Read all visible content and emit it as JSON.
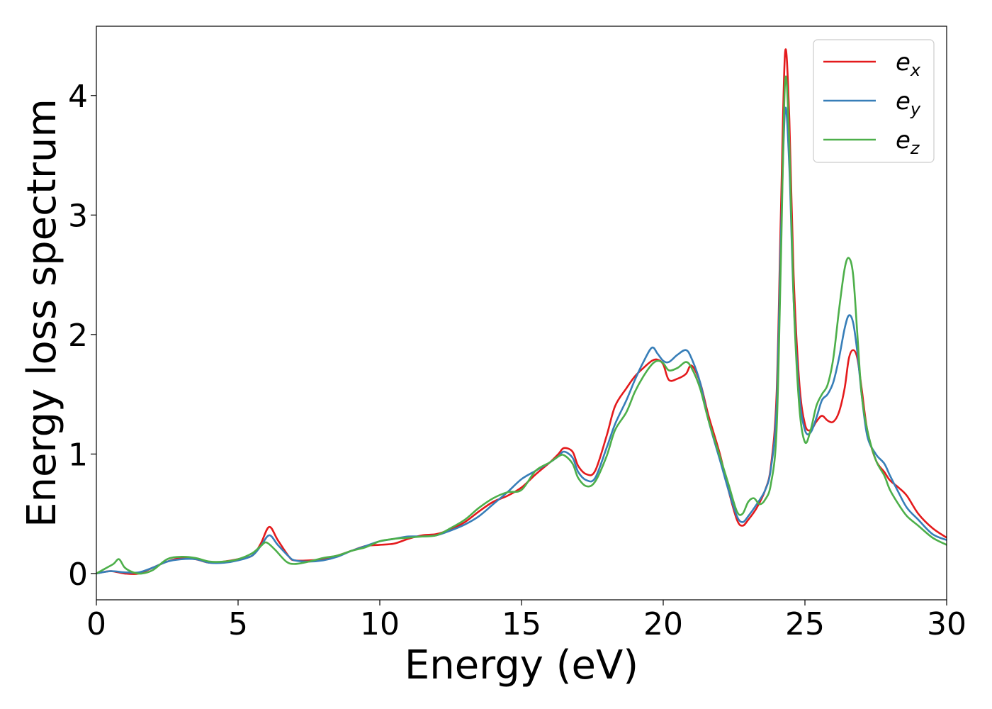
{
  "chart_data": {
    "type": "line",
    "title": "",
    "xlabel": "Energy (eV)",
    "ylabel": "Energy loss spectrum",
    "xlim": [
      0,
      30
    ],
    "ylim": [
      -0.22,
      4.58
    ],
    "xticks": [
      0,
      5,
      10,
      15,
      20,
      25,
      30
    ],
    "yticks": [
      0,
      1,
      2,
      3,
      4
    ],
    "grid": false,
    "legend_position": "top-right",
    "series": [
      {
        "name_base": "e",
        "name_sub": "x",
        "color": "#e41a1c",
        "x": [
          0,
          0.5,
          1,
          1.5,
          2,
          2.5,
          3,
          3.5,
          4,
          4.5,
          5,
          5.5,
          5.8,
          6.1,
          6.4,
          6.8,
          7,
          7.5,
          8,
          8.5,
          9,
          9.5,
          10,
          10.5,
          11,
          11.5,
          12,
          12.5,
          13,
          13.5,
          14,
          14.5,
          15,
          15.5,
          16,
          16.3,
          16.5,
          16.8,
          17,
          17.3,
          17.6,
          18,
          18.3,
          18.7,
          19,
          19.3,
          19.6,
          19.8,
          20,
          20.2,
          20.5,
          20.8,
          21,
          21.3,
          21.6,
          22,
          22.3,
          22.6,
          22.8,
          23,
          23.3,
          23.6,
          23.8,
          24,
          24.15,
          24.3,
          24.45,
          24.6,
          24.8,
          25,
          25.2,
          25.4,
          25.6,
          25.8,
          26,
          26.2,
          26.4,
          26.55,
          26.7,
          26.85,
          27,
          27.2,
          27.5,
          27.8,
          28,
          28.3,
          28.6,
          29,
          29.5,
          30
        ],
        "y": [
          0,
          0.02,
          0,
          0,
          0.05,
          0.1,
          0.13,
          0.12,
          0.09,
          0.1,
          0.12,
          0.15,
          0.25,
          0.39,
          0.28,
          0.14,
          0.11,
          0.11,
          0.12,
          0.15,
          0.19,
          0.23,
          0.24,
          0.25,
          0.29,
          0.32,
          0.33,
          0.37,
          0.43,
          0.52,
          0.6,
          0.65,
          0.72,
          0.83,
          0.93,
          1.0,
          1.05,
          1.02,
          0.9,
          0.83,
          0.86,
          1.15,
          1.4,
          1.55,
          1.65,
          1.72,
          1.78,
          1.79,
          1.75,
          1.62,
          1.63,
          1.67,
          1.74,
          1.6,
          1.32,
          1.0,
          0.7,
          0.45,
          0.4,
          0.45,
          0.55,
          0.7,
          0.9,
          1.5,
          3.0,
          4.36,
          3.8,
          2.5,
          1.6,
          1.25,
          1.2,
          1.27,
          1.32,
          1.28,
          1.27,
          1.35,
          1.55,
          1.8,
          1.87,
          1.8,
          1.55,
          1.2,
          0.95,
          0.85,
          0.78,
          0.72,
          0.65,
          0.5,
          0.38,
          0.3
        ]
      },
      {
        "name_base": "e",
        "name_sub": "y",
        "color": "#377eb8",
        "x": [
          0,
          0.5,
          1,
          1.5,
          2,
          2.5,
          3,
          3.5,
          4,
          4.5,
          5,
          5.5,
          5.8,
          6.1,
          6.4,
          6.8,
          7,
          7.5,
          8,
          8.5,
          9,
          9.5,
          10,
          10.5,
          11,
          11.5,
          12,
          12.5,
          13,
          13.5,
          14,
          14.5,
          15,
          15.5,
          16,
          16.3,
          16.5,
          16.8,
          17,
          17.3,
          17.6,
          18,
          18.3,
          18.7,
          19,
          19.3,
          19.6,
          19.8,
          20,
          20.2,
          20.5,
          20.8,
          21,
          21.3,
          21.6,
          22,
          22.3,
          22.6,
          22.8,
          23,
          23.3,
          23.6,
          23.8,
          24,
          24.15,
          24.3,
          24.45,
          24.6,
          24.8,
          25,
          25.2,
          25.4,
          25.6,
          25.8,
          26,
          26.2,
          26.4,
          26.55,
          26.7,
          26.85,
          27,
          27.2,
          27.5,
          27.8,
          28,
          28.3,
          28.6,
          29,
          29.5,
          30
        ],
        "y": [
          0,
          0.02,
          0.01,
          0.01,
          0.05,
          0.1,
          0.12,
          0.12,
          0.09,
          0.09,
          0.11,
          0.15,
          0.23,
          0.32,
          0.24,
          0.14,
          0.11,
          0.1,
          0.11,
          0.14,
          0.19,
          0.23,
          0.27,
          0.29,
          0.31,
          0.31,
          0.32,
          0.36,
          0.41,
          0.48,
          0.58,
          0.68,
          0.79,
          0.86,
          0.93,
          0.98,
          1.02,
          0.97,
          0.85,
          0.78,
          0.8,
          1.05,
          1.25,
          1.45,
          1.62,
          1.77,
          1.89,
          1.84,
          1.78,
          1.77,
          1.83,
          1.87,
          1.8,
          1.6,
          1.28,
          0.95,
          0.7,
          0.48,
          0.43,
          0.48,
          0.58,
          0.7,
          0.88,
          1.4,
          2.8,
          3.88,
          3.4,
          2.3,
          1.5,
          1.2,
          1.18,
          1.3,
          1.45,
          1.5,
          1.6,
          1.8,
          2.05,
          2.16,
          2.1,
          1.85,
          1.5,
          1.15,
          1.0,
          0.92,
          0.82,
          0.68,
          0.55,
          0.45,
          0.33,
          0.28
        ]
      },
      {
        "name_base": "e",
        "name_sub": "z",
        "color": "#4daf4a",
        "x": [
          0,
          0.3,
          0.6,
          0.8,
          1,
          1.3,
          1.6,
          2,
          2.5,
          3,
          3.5,
          4,
          4.5,
          5,
          5.5,
          5.8,
          6,
          6.3,
          6.7,
          7,
          7.5,
          8,
          8.5,
          9,
          9.5,
          10,
          10.5,
          11,
          11.5,
          12,
          12.5,
          13,
          13.5,
          14,
          14.5,
          15,
          15.5,
          16,
          16.3,
          16.5,
          16.8,
          17,
          17.3,
          17.6,
          18,
          18.3,
          18.7,
          19,
          19.3,
          19.6,
          19.8,
          20,
          20.2,
          20.5,
          20.8,
          21,
          21.3,
          21.6,
          22,
          22.3,
          22.6,
          22.8,
          23,
          23.2,
          23.4,
          23.6,
          23.8,
          24,
          24.15,
          24.3,
          24.45,
          24.6,
          24.8,
          25,
          25.2,
          25.4,
          25.6,
          25.8,
          26,
          26.2,
          26.4,
          26.55,
          26.7,
          26.85,
          27,
          27.2,
          27.5,
          27.8,
          28,
          28.3,
          28.6,
          29,
          29.5,
          30
        ],
        "y": [
          0,
          0.04,
          0.08,
          0.12,
          0.05,
          0.01,
          0,
          0.03,
          0.12,
          0.14,
          0.13,
          0.1,
          0.1,
          0.12,
          0.17,
          0.23,
          0.26,
          0.2,
          0.1,
          0.08,
          0.1,
          0.13,
          0.15,
          0.19,
          0.22,
          0.27,
          0.29,
          0.3,
          0.31,
          0.32,
          0.38,
          0.45,
          0.55,
          0.63,
          0.68,
          0.7,
          0.86,
          0.93,
          0.98,
          0.99,
          0.92,
          0.8,
          0.73,
          0.77,
          0.98,
          1.2,
          1.35,
          1.52,
          1.65,
          1.75,
          1.78,
          1.76,
          1.7,
          1.72,
          1.77,
          1.72,
          1.55,
          1.28,
          0.98,
          0.75,
          0.52,
          0.5,
          0.6,
          0.63,
          0.58,
          0.62,
          0.75,
          1.2,
          2.6,
          4.12,
          3.6,
          2.3,
          1.4,
          1.1,
          1.2,
          1.4,
          1.5,
          1.58,
          1.8,
          2.2,
          2.55,
          2.64,
          2.5,
          2.0,
          1.5,
          1.2,
          0.95,
          0.82,
          0.7,
          0.58,
          0.48,
          0.4,
          0.3,
          0.24
        ]
      }
    ]
  }
}
